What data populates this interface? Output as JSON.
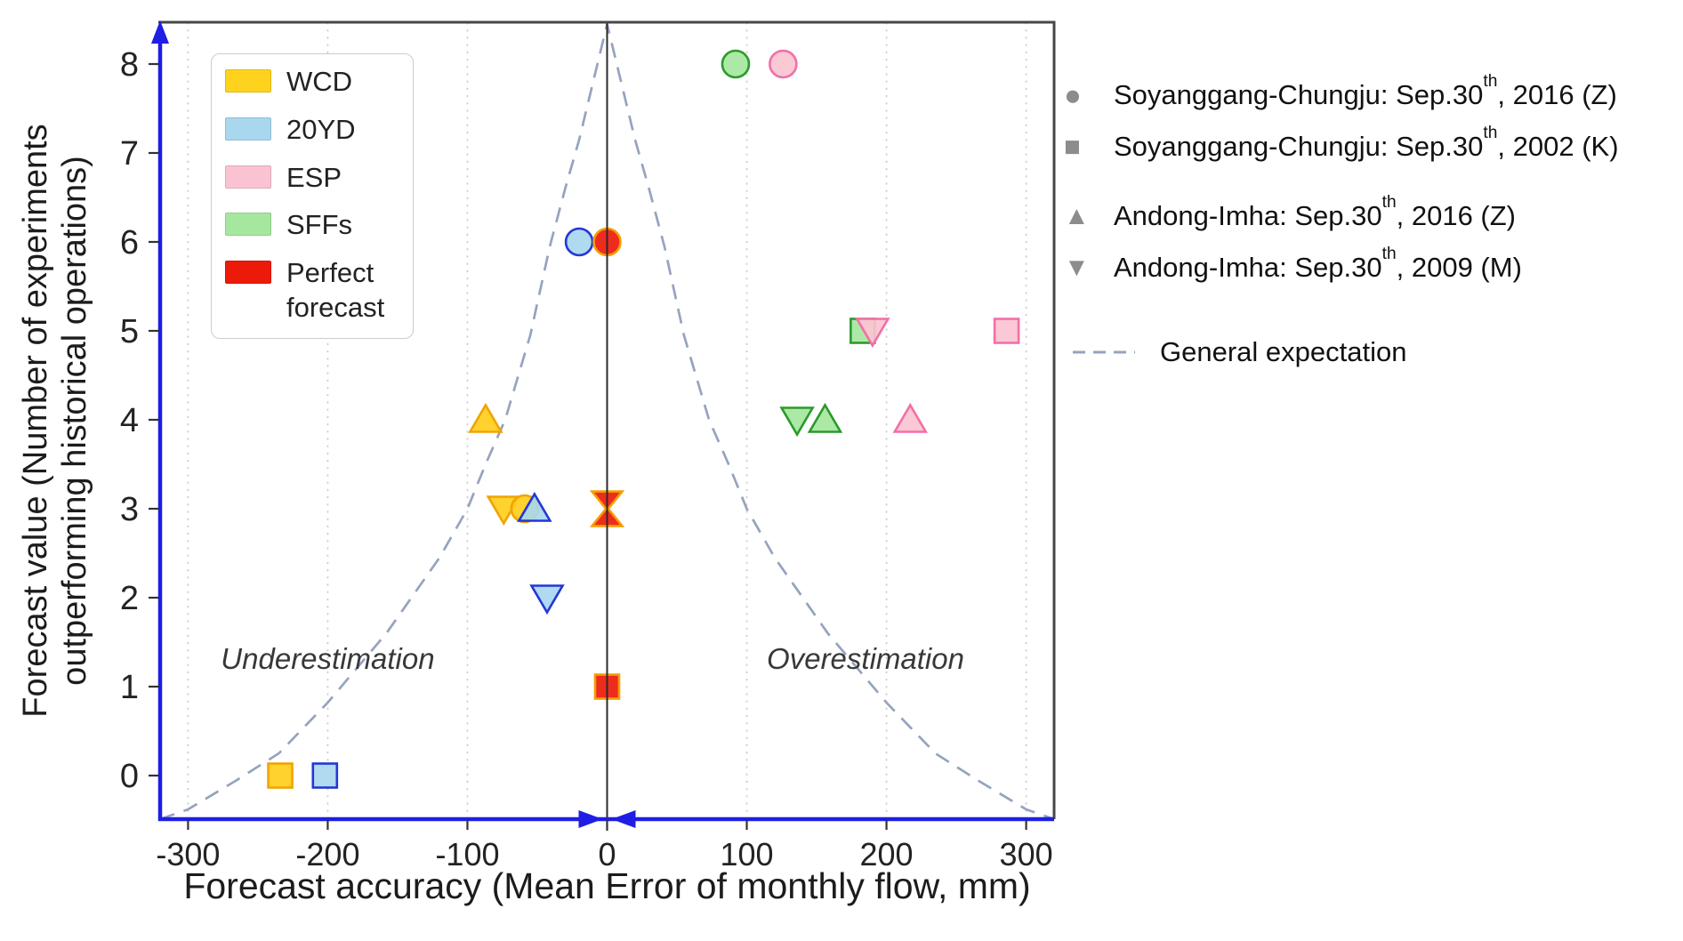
{
  "chart_data": {
    "type": "scatter",
    "title": "",
    "xlabel": "Forecast accuracy (Mean Error of monthly flow, mm)",
    "ylabel_line1": "Forecast value (Number of experiments",
    "ylabel_line2": "outperforming historical operations)",
    "xlim": [
      -320,
      320
    ],
    "ylim": [
      -0.49,
      8.47
    ],
    "x_ticks": [
      -300,
      -200,
      -100,
      0,
      100,
      200,
      300
    ],
    "y_ticks": [
      0,
      1,
      2,
      3,
      4,
      5,
      6,
      7,
      8
    ],
    "grid": "vertical dotted lines at x ticks (except 0), solid dark line at x=0",
    "annotations": [
      {
        "text": "Underestimation",
        "x": -200,
        "y": 1.2
      },
      {
        "text": "Overestimation",
        "x": 185,
        "y": 1.2
      }
    ],
    "series": [
      {
        "name": "WCD",
        "fill": "#FFCE1B",
        "stroke": "#F0A404",
        "points": [
          {
            "shape": "square",
            "x": -234,
            "y": 0
          },
          {
            "shape": "triangle-up",
            "x": -87,
            "y": 4
          },
          {
            "shape": "triangle-down",
            "x": -74,
            "y": 3
          },
          {
            "shape": "circle",
            "x": -59,
            "y": 3
          }
        ]
      },
      {
        "name": "20YD",
        "fill": "#A8D7EE",
        "stroke": "#2436D6",
        "points": [
          {
            "shape": "square",
            "x": -202,
            "y": 0
          },
          {
            "shape": "triangle-up",
            "x": -52,
            "y": 3
          },
          {
            "shape": "triangle-down",
            "x": -43,
            "y": 2
          },
          {
            "shape": "circle",
            "x": -20,
            "y": 6
          }
        ]
      },
      {
        "name": "SFFs",
        "fill": "#A5E79F",
        "stroke": "#2B9A2B",
        "points": [
          {
            "shape": "circle",
            "x": 92,
            "y": 8
          },
          {
            "shape": "square",
            "x": 183,
            "y": 5
          },
          {
            "shape": "triangle-down",
            "x": 136,
            "y": 4
          },
          {
            "shape": "triangle-up",
            "x": 156,
            "y": 4
          }
        ]
      },
      {
        "name": "ESP",
        "fill": "#FBC3D2",
        "stroke": "#F26FA7",
        "points": [
          {
            "shape": "circle",
            "x": 126,
            "y": 8
          },
          {
            "shape": "triangle-down",
            "x": 190,
            "y": 5
          },
          {
            "shape": "square",
            "x": 286,
            "y": 5
          },
          {
            "shape": "triangle-up",
            "x": 217,
            "y": 4
          }
        ]
      },
      {
        "name": "Perfect forecast",
        "fill": "#ED1A0A",
        "stroke": "#F59E00",
        "points": [
          {
            "shape": "circle",
            "x": 0,
            "y": 6
          },
          {
            "shape": "triangle-down",
            "x": 0,
            "y": 3,
            "variant": "hourglass"
          },
          {
            "shape": "triangle-up",
            "x": 0,
            "y": 3,
            "variant": "hourglass"
          },
          {
            "shape": "square",
            "x": 0,
            "y": 1
          }
        ]
      }
    ],
    "expectation_curve": {
      "label": "General expectation",
      "color": "#96A3BF",
      "points": [
        [
          -320,
          -0.49
        ],
        [
          -300,
          -0.38
        ],
        [
          -265,
          -0.05
        ],
        [
          -235,
          0.25
        ],
        [
          -200,
          0.82
        ],
        [
          -158,
          1.6
        ],
        [
          -120,
          2.45
        ],
        [
          -100,
          3.0
        ],
        [
          -87,
          3.5
        ],
        [
          -73,
          4.0
        ],
        [
          -55,
          4.95
        ],
        [
          -41,
          5.95
        ],
        [
          -30,
          6.6
        ],
        [
          -20,
          7.15
        ],
        [
          -10,
          7.8
        ],
        [
          0,
          8.45
        ],
        [
          10,
          7.8
        ],
        [
          20,
          7.15
        ],
        [
          30,
          6.6
        ],
        [
          41,
          5.95
        ],
        [
          55,
          4.95
        ],
        [
          73,
          4.0
        ],
        [
          87,
          3.5
        ],
        [
          100,
          3.0
        ],
        [
          120,
          2.45
        ],
        [
          158,
          1.6
        ],
        [
          200,
          0.82
        ],
        [
          235,
          0.25
        ],
        [
          265,
          -0.05
        ],
        [
          300,
          -0.38
        ],
        [
          320,
          -0.49
        ]
      ]
    },
    "axis_color": "#1E1EE4",
    "zero_line_color": "#2a2a2a",
    "border_color": "#474747"
  },
  "legend": {
    "items": [
      {
        "label": "WCD",
        "fill": "#FFD21E"
      },
      {
        "label": "20YD",
        "fill": "#A8D7EE"
      },
      {
        "label": "ESP",
        "fill": "#FBC3D2"
      },
      {
        "label": "SFFs",
        "fill": "#A5E79F"
      },
      {
        "label": "Perfect forecast",
        "fill": "#ED1A0A"
      }
    ]
  },
  "site_legend": {
    "marker_color": "#8C8C8C",
    "items": [
      {
        "marker": "circle",
        "glyph": "●",
        "prefix": "Soyanggang-Chungju: Sep.30",
        "sup": "th",
        "suffix": ", 2016 (Z)"
      },
      {
        "marker": "square",
        "glyph": "■",
        "prefix": "Soyanggang-Chungju: Sep.30",
        "sup": "th",
        "suffix": ", 2002 (K)"
      },
      {
        "marker": "triangle-up",
        "glyph": "▲",
        "prefix": "Andong-Imha: Sep.30",
        "sup": "th",
        "suffix": ", 2016 (Z)"
      },
      {
        "marker": "triangle-down",
        "glyph": "▼",
        "prefix": "Andong-Imha: Sep.30",
        "sup": "th",
        "suffix": ", 2009 (M)"
      }
    ],
    "expectation_label": "General expectation"
  }
}
